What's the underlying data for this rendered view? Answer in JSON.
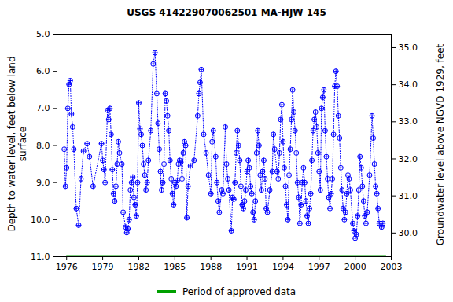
{
  "chart_data": {
    "type": "scatter",
    "title": "USGS 414229070062501 MA-HJW  145",
    "y_label": "Depth to water level, feet below land surface",
    "y2_label": "Groundwater level above NGVD 1929, feet",
    "color": "#0000ff",
    "marker": "circle_plus",
    "line_style": "dotted",
    "xlim": [
      1975.2,
      2003
    ],
    "xticks": [
      1976,
      1979,
      1982,
      1985,
      1988,
      1991,
      1994,
      1997,
      2000,
      2003
    ],
    "ylim": [
      11.0,
      5.0
    ],
    "yticks": [
      {
        "value": 5,
        "label": "5.0"
      },
      {
        "value": 6,
        "label": "6.0"
      },
      {
        "value": 7,
        "label": "7.0"
      },
      {
        "value": 8,
        "label": "8.0"
      },
      {
        "value": 9,
        "label": "9.0"
      },
      {
        "value": 10,
        "label": "10.0"
      },
      {
        "value": 11,
        "label": "11.0"
      }
    ],
    "y2lim": [
      29.36,
      35.36
    ],
    "y2ticks": [
      {
        "value": 30,
        "label": "30.0"
      },
      {
        "value": 31,
        "label": "31.0"
      },
      {
        "value": 32,
        "label": "32.0"
      },
      {
        "value": 33,
        "label": "33.0"
      },
      {
        "value": 34,
        "label": "34.0"
      },
      {
        "value": 35,
        "label": "35.0"
      }
    ],
    "approved_period": {
      "name": "Period of approved data",
      "color": "#00a000",
      "x": [
        1976.0,
        2002.6
      ],
      "y": 11.0
    },
    "x": [
      1975.8,
      1975.9,
      1976.0,
      1976.1,
      1976.2,
      1976.3,
      1976.4,
      1976.5,
      1976.6,
      1976.8,
      1977.0,
      1977.2,
      1977.4,
      1977.7,
      1977.9,
      1978.2,
      1978.9,
      1979.0,
      1979.1,
      1979.2,
      1979.4,
      1979.5,
      1979.6,
      1979.7,
      1979.8,
      1979.9,
      1980.0,
      1980.1,
      1980.2,
      1980.3,
      1980.4,
      1980.6,
      1980.7,
      1980.9,
      1981.0,
      1981.1,
      1981.2,
      1981.3,
      1981.4,
      1981.5,
      1981.6,
      1981.7,
      1981.8,
      1981.9,
      1982.0,
      1982.1,
      1982.2,
      1982.3,
      1982.4,
      1982.5,
      1982.6,
      1982.7,
      1982.8,
      1983.0,
      1983.2,
      1983.35,
      1983.5,
      1983.6,
      1983.7,
      1983.8,
      1983.9,
      1984.0,
      1984.1,
      1984.2,
      1984.3,
      1984.4,
      1984.5,
      1984.6,
      1984.7,
      1984.8,
      1984.9,
      1985.0,
      1985.1,
      1985.2,
      1985.3,
      1985.4,
      1985.5,
      1985.6,
      1985.7,
      1985.8,
      1985.9,
      1986.0,
      1986.1,
      1986.3,
      1986.6,
      1986.9,
      1987.0,
      1987.1,
      1987.2,
      1987.4,
      1987.6,
      1987.8,
      1988.0,
      1988.1,
      1988.2,
      1988.4,
      1988.5,
      1988.6,
      1988.7,
      1988.9,
      1989.0,
      1989.2,
      1989.3,
      1989.4,
      1989.5,
      1989.7,
      1989.8,
      1989.9,
      1990.0,
      1990.1,
      1990.2,
      1990.3,
      1990.4,
      1990.5,
      1990.6,
      1990.7,
      1990.8,
      1990.9,
      1991.0,
      1991.1,
      1991.2,
      1991.3,
      1991.4,
      1991.5,
      1991.6,
      1991.7,
      1991.8,
      1991.9,
      1992.0,
      1992.1,
      1992.2,
      1992.3,
      1992.4,
      1992.5,
      1992.6,
      1992.7,
      1992.9,
      1993.1,
      1993.2,
      1993.3,
      1993.5,
      1993.6,
      1993.7,
      1993.8,
      1993.9,
      1994.0,
      1994.1,
      1994.2,
      1994.3,
      1994.4,
      1994.5,
      1994.6,
      1994.7,
      1994.8,
      1994.9,
      1995.0,
      1995.1,
      1995.2,
      1995.3,
      1995.4,
      1995.5,
      1995.6,
      1995.7,
      1995.8,
      1995.9,
      1996.0,
      1996.1,
      1996.2,
      1996.3,
      1996.4,
      1996.5,
      1996.6,
      1996.7,
      1996.8,
      1996.9,
      1997.0,
      1997.1,
      1997.2,
      1997.3,
      1997.4,
      1997.5,
      1997.6,
      1997.7,
      1997.8,
      1997.9,
      1998.0,
      1998.1,
      1998.2,
      1998.3,
      1998.4,
      1998.5,
      1998.6,
      1998.7,
      1998.8,
      1998.9,
      1999.0,
      1999.1,
      1999.2,
      1999.3,
      1999.4,
      1999.5,
      1999.6,
      1999.8,
      1999.9,
      2000.0,
      2000.1,
      2000.2,
      2000.3,
      2000.4,
      2000.5,
      2000.6,
      2000.7,
      2000.8,
      2000.9,
      2001.0,
      2001.2,
      2001.4,
      2001.5,
      2001.6,
      2001.7,
      2001.8,
      2001.9,
      2002.0,
      2002.2,
      2002.3
    ],
    "values": [
      8.1,
      9.1,
      8.6,
      7.0,
      6.35,
      6.25,
      7.15,
      7.5,
      8.1,
      9.7,
      10.15,
      8.9,
      8.15,
      7.95,
      8.3,
      9.1,
      7.95,
      8.4,
      8.65,
      9.0,
      7.05,
      7.3,
      7.0,
      7.7,
      8.65,
      9.3,
      9.5,
      9.1,
      8.5,
      7.9,
      8.2,
      8.5,
      9.8,
      10.2,
      10.35,
      10.25,
      10.0,
      9.2,
      9.0,
      8.85,
      9.4,
      9.6,
      9.9,
      9.0,
      6.85,
      7.55,
      7.7,
      8.0,
      8.5,
      8.8,
      9.2,
      9.0,
      8.4,
      7.6,
      5.8,
      5.5,
      6.6,
      7.4,
      8.1,
      8.7,
      9.2,
      9.0,
      8.5,
      6.6,
      6.8,
      7.2,
      7.6,
      8.4,
      8.9,
      9.3,
      9.6,
      9.0,
      9.1,
      8.95,
      8.5,
      8.4,
      8.45,
      8.9,
      8.2,
      7.9,
      8.0,
      9.95,
      9.1,
      8.55,
      8.4,
      7.2,
      6.6,
      6.3,
      5.95,
      7.7,
      8.2,
      8.8,
      9.3,
      7.9,
      7.6,
      8.3,
      9.0,
      9.5,
      9.8,
      9.2,
      9.3,
      7.5,
      8.5,
      8.9,
      9.2,
      10.3,
      9.4,
      9.45,
      9.0,
      8.2,
      7.6,
      8.0,
      8.4,
      9.1,
      9.6,
      9.7,
      9.5,
      9.2,
      8.7,
      8.4,
      8.6,
      9.1,
      9.3,
      9.8,
      10.0,
      9.5,
      8.2,
      7.6,
      8.0,
      8.8,
      9.2,
      8.7,
      8.4,
      8.9,
      9.7,
      9.8,
      9.2,
      8.7,
      7.7,
      8.1,
      8.7,
      8.9,
      8.2,
      7.3,
      6.9,
      7.9,
      8.6,
      9.1,
      9.6,
      10.0,
      8.8,
      8.1,
      7.3,
      6.5,
      7.1,
      7.6,
      8.2,
      9.0,
      9.4,
      10.1,
      9.6,
      9.0,
      8.6,
      9.0,
      9.5,
      9.9,
      10.1,
      9.7,
      9.3,
      8.4,
      7.6,
      7.3,
      7.1,
      7.5,
      8.2,
      8.7,
      9.2,
      7.0,
      6.7,
      6.5,
      7.6,
      8.3,
      8.9,
      9.4,
      9.7,
      9.3,
      8.9,
      7.7,
      6.4,
      6.0,
      6.4,
      7.2,
      7.8,
      8.6,
      9.2,
      9.7,
      10.0,
      9.8,
      9.3,
      8.8,
      8.9,
      9.2,
      10.1,
      10.3,
      10.5,
      10.4,
      9.9,
      9.2,
      8.3,
      8.6,
      9.1,
      9.5,
      9.9,
      10.1,
      9.8,
      8.8,
      7.2,
      7.8,
      8.5,
      9.1,
      9.3,
      9.7,
      10.1,
      10.2,
      10.1
    ]
  }
}
